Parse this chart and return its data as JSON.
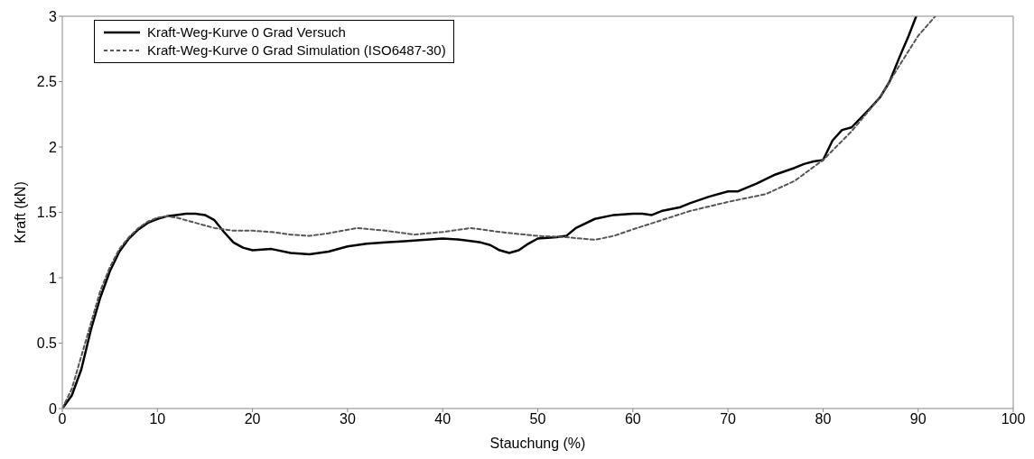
{
  "chart_data": {
    "type": "line",
    "xlabel": "Stauchung (%)",
    "ylabel": "Kraft (kN)",
    "xlim": [
      0,
      100
    ],
    "xticks": [
      0,
      10,
      20,
      30,
      40,
      50,
      60,
      70,
      80,
      90,
      100
    ],
    "ylim": [
      0,
      3
    ],
    "yticks": [
      0,
      0.5,
      1,
      1.5,
      2,
      2.5,
      3
    ],
    "grid": false,
    "legend": "top left",
    "marker": "none",
    "series": [
      {
        "name": "Kraft-Weg-Kurve 0 Grad Versuch",
        "color": "#000000",
        "line_style": "solid",
        "x": [
          0,
          1,
          2,
          3,
          4,
          5,
          6,
          7,
          8,
          9,
          10,
          11,
          12,
          13,
          14,
          15,
          16,
          17,
          18,
          19,
          20,
          22,
          24,
          26,
          28,
          30,
          32,
          34,
          36,
          38,
          40,
          42,
          44,
          45,
          46,
          47,
          48,
          49,
          50,
          52,
          53,
          54,
          56,
          58,
          60,
          61,
          62,
          63,
          65,
          66,
          68,
          70,
          71,
          73,
          75,
          77,
          78,
          79,
          80,
          81,
          82,
          83,
          85,
          86,
          87,
          88,
          89,
          89.8
        ],
        "values": [
          0,
          0.1,
          0.3,
          0.6,
          0.85,
          1.05,
          1.2,
          1.3,
          1.37,
          1.42,
          1.45,
          1.47,
          1.48,
          1.49,
          1.49,
          1.48,
          1.44,
          1.35,
          1.27,
          1.23,
          1.21,
          1.22,
          1.19,
          1.18,
          1.2,
          1.24,
          1.26,
          1.27,
          1.28,
          1.29,
          1.3,
          1.29,
          1.27,
          1.25,
          1.21,
          1.19,
          1.21,
          1.26,
          1.3,
          1.31,
          1.32,
          1.38,
          1.45,
          1.48,
          1.49,
          1.49,
          1.48,
          1.51,
          1.54,
          1.57,
          1.62,
          1.66,
          1.66,
          1.72,
          1.79,
          1.84,
          1.87,
          1.89,
          1.9,
          2.05,
          2.13,
          2.15,
          2.3,
          2.38,
          2.5,
          2.68,
          2.85,
          3.0
        ]
      },
      {
        "name": "Kraft-Weg-Kurve 0 Grad Simulation (ISO6487-30)",
        "color": "#555555",
        "line_style": "dashed",
        "x": [
          0,
          1,
          2,
          3,
          4,
          5,
          6,
          7,
          8,
          9,
          10,
          11,
          12,
          14,
          16,
          18,
          20,
          22,
          24,
          26,
          28,
          31,
          34,
          37,
          40,
          43,
          46,
          50,
          53,
          56,
          58,
          60,
          63,
          66,
          70,
          74,
          77,
          80,
          83,
          86,
          88,
          90,
          91.8
        ],
        "values": [
          0,
          0.15,
          0.4,
          0.65,
          0.9,
          1.08,
          1.22,
          1.31,
          1.38,
          1.43,
          1.46,
          1.47,
          1.46,
          1.42,
          1.38,
          1.36,
          1.36,
          1.35,
          1.33,
          1.32,
          1.34,
          1.38,
          1.36,
          1.33,
          1.35,
          1.38,
          1.35,
          1.32,
          1.31,
          1.29,
          1.32,
          1.37,
          1.44,
          1.51,
          1.58,
          1.64,
          1.74,
          1.9,
          2.12,
          2.38,
          2.62,
          2.85,
          3.0
        ]
      }
    ]
  }
}
